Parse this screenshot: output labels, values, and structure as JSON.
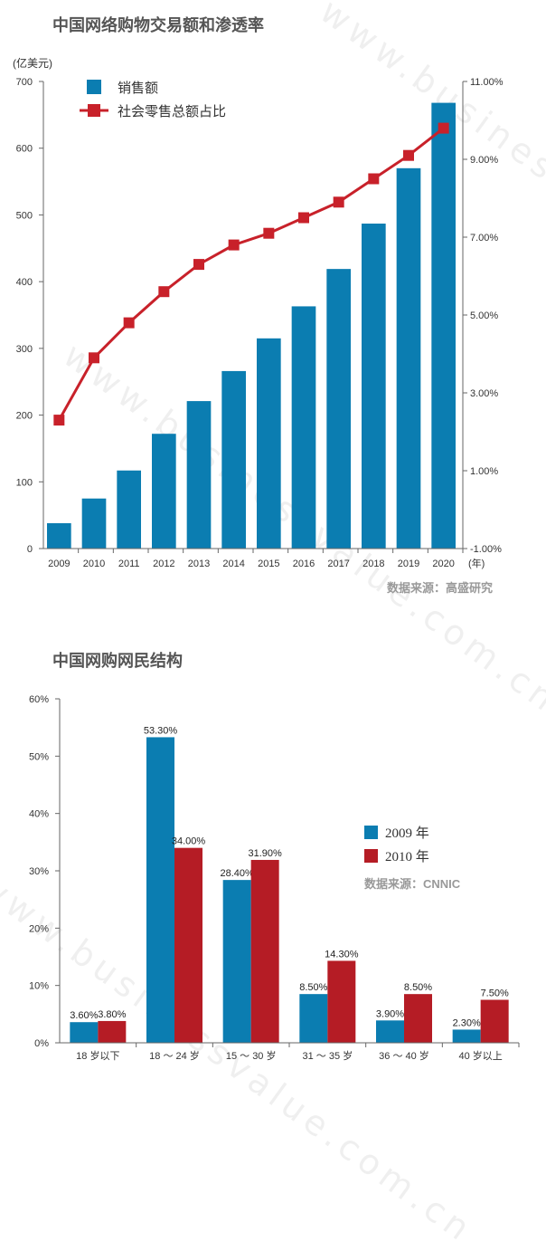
{
  "watermark": "www.businessvalue.com.cn",
  "chart_data": [
    {
      "type": "bar",
      "title": "中国网络购物交易额和渗透率",
      "ylabel_left": "(亿美元)",
      "xlabel_unit": "(年)",
      "source": "数据来源：高盛研究",
      "categories": [
        "2009",
        "2010",
        "2011",
        "2012",
        "2013",
        "2014",
        "2015",
        "2016",
        "2017",
        "2018",
        "2019",
        "2020"
      ],
      "y_ticks_left": [
        "700",
        "600",
        "500",
        "400",
        "300",
        "200",
        "100",
        "0"
      ],
      "y_ticks_right": [
        "11.00%",
        "9.00%",
        "7.00%",
        "5.00%",
        "3.00%",
        "1.00%",
        "-1.00%"
      ],
      "ylim_left": [
        0,
        700
      ],
      "ylim_right": [
        -1,
        11
      ],
      "series": [
        {
          "name": "销售额",
          "kind": "bar",
          "color": "#0b7db1",
          "values": [
            38,
            75,
            117,
            172,
            221,
            266,
            315,
            363,
            419,
            487,
            570,
            668
          ]
        },
        {
          "name": "社会零售总额占比",
          "kind": "line",
          "axis": "right",
          "color": "#c8212a",
          "values": [
            2.3,
            3.9,
            4.8,
            5.6,
            6.3,
            6.8,
            7.1,
            7.5,
            7.9,
            8.5,
            9.1,
            9.8
          ]
        }
      ],
      "legend_position": "top-left"
    },
    {
      "type": "bar",
      "title": "中国网购网民结构",
      "source": "数据来源：CNNIC",
      "categories": [
        "18 岁以下",
        "18 ～ 24 岁",
        "15 ～ 30 岁",
        "31 ～ 35 岁",
        "36 ～ 40 岁",
        "40 岁以上"
      ],
      "y_ticks": [
        "60%",
        "50%",
        "40%",
        "30%",
        "20%",
        "10%",
        "0%"
      ],
      "ylim": [
        0,
        60
      ],
      "series": [
        {
          "name": "2009 年",
          "color": "#0b7db1",
          "values": [
            3.6,
            53.3,
            28.4,
            8.5,
            3.9,
            2.3
          ],
          "labels": [
            "3.60%",
            "53.30%",
            "28.40%",
            "8.50%",
            "3.90%",
            "2.30%"
          ]
        },
        {
          "name": "2010 年",
          "color": "#b51c25",
          "values": [
            3.8,
            34.0,
            31.9,
            14.3,
            8.5,
            7.5
          ],
          "labels": [
            "3.80%",
            "34.00%",
            "31.90%",
            "14.30%",
            "8.50%",
            "7.50%"
          ]
        }
      ],
      "legend_position": "right"
    }
  ]
}
